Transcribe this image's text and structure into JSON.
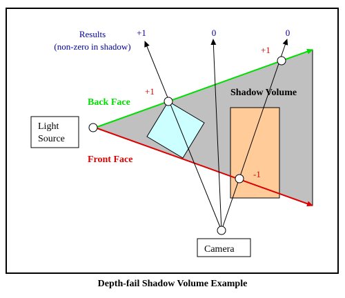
{
  "caption": "Depth-fail Shadow Volume Example",
  "labels": {
    "results_line1": "Results",
    "results_line2": "(non-zero in shadow)",
    "light_line1": "Light",
    "light_line2": "Source",
    "camera": "Camera",
    "back_face": "Back Face",
    "front_face": "Front Face",
    "shadow_volume": "Shadow Volume"
  },
  "ray_results": [
    "+1",
    "0",
    "0"
  ],
  "intersection_counts": [
    "+1",
    "+1",
    "-1"
  ],
  "colors": {
    "back_face": "#00dd00",
    "front_face": "#dd0000",
    "results_text": "#000099",
    "count_text": "#cc0000",
    "shadow_volume_fill": "#c0c0c0",
    "blocker_fill": "#ffcc99",
    "occluder_fill": "#ccffff"
  }
}
